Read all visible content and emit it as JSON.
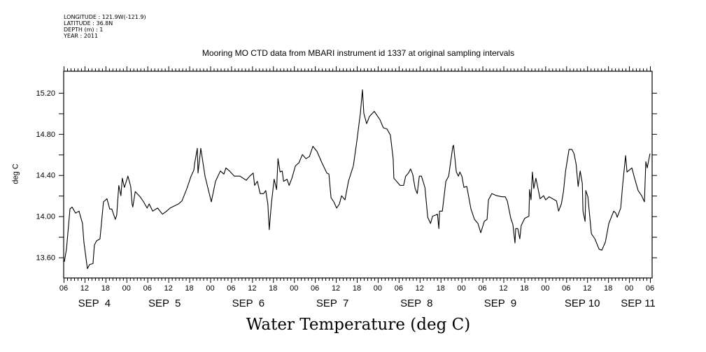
{
  "header": {
    "longitude": "LONGITUDE : 121.9W(-121.9)",
    "latitude": "LATITUDE : 36.8N",
    "depth": "DEPTH (m) : 1",
    "year": "YEAR : 2011"
  },
  "chart_data": {
    "type": "line",
    "title": "Mooring MO CTD data from MBARI instrument id 1337 at original sampling intervals",
    "main_label": "Water Temperature (deg C)",
    "xlabel": "",
    "ylabel": "deg C",
    "x_units": "hours since SEP 4 00:00 (2011)",
    "xlim": [
      6,
      174.6
    ],
    "ylim": [
      13.4,
      15.41
    ],
    "y_ticks": [
      13.6,
      13.8,
      14.0,
      14.2,
      14.4,
      14.6,
      14.8,
      15.0,
      15.2
    ],
    "y_tick_labels": [
      {
        "value": 13.6,
        "label": "13.60"
      },
      {
        "value": 14.0,
        "label": "14.00"
      },
      {
        "value": 14.4,
        "label": "14.40"
      },
      {
        "value": 14.8,
        "label": "14.80"
      },
      {
        "value": 15.2,
        "label": "15.20"
      }
    ],
    "x_hour_labels": [
      "06",
      "12",
      "18",
      "00",
      "06",
      "12",
      "18",
      "00",
      "06",
      "12",
      "18",
      "00",
      "06",
      "12",
      "18",
      "00",
      "06",
      "12",
      "18",
      "00",
      "06",
      "12",
      "18",
      "00",
      "06",
      "12",
      "18",
      "00",
      "06"
    ],
    "x_hour_label_start": 6,
    "x_hour_label_step": 6,
    "date_labels": [
      {
        "label": "SEP  4",
        "hour": 14.8
      },
      {
        "label": "SEP  5",
        "hour": 34.9
      },
      {
        "label": "SEP  6",
        "hour": 58.9
      },
      {
        "label": "SEP  7",
        "hour": 83.0
      },
      {
        "label": "SEP  8",
        "hour": 107.1
      },
      {
        "label": "SEP  9",
        "hour": 131.1
      },
      {
        "label": "SEP 10",
        "hour": 154.6
      },
      {
        "label": "SEP 11",
        "hour": 170.6
      }
    ],
    "grid": false,
    "series": [
      {
        "name": "Water Temperature",
        "points": [
          [
            6.0,
            13.58
          ],
          [
            6.2,
            13.56
          ],
          [
            6.8,
            13.68
          ],
          [
            7.8,
            14.07
          ],
          [
            8.4,
            14.09
          ],
          [
            9.4,
            14.03
          ],
          [
            10.4,
            14.05
          ],
          [
            11.4,
            13.93
          ],
          [
            11.8,
            13.75
          ],
          [
            12.8,
            13.49
          ],
          [
            13.4,
            13.53
          ],
          [
            14.4,
            13.54
          ],
          [
            14.8,
            13.72
          ],
          [
            15.4,
            13.76
          ],
          [
            16.4,
            13.78
          ],
          [
            17.2,
            14.07
          ],
          [
            17.4,
            14.14
          ],
          [
            18.4,
            14.17
          ],
          [
            19.2,
            14.07
          ],
          [
            19.8,
            14.07
          ],
          [
            20.8,
            13.97
          ],
          [
            21.2,
            14.01
          ],
          [
            21.8,
            14.3
          ],
          [
            22.4,
            14.2
          ],
          [
            22.8,
            14.37
          ],
          [
            23.4,
            14.28
          ],
          [
            24.4,
            14.39
          ],
          [
            25.2,
            14.29
          ],
          [
            25.6,
            14.12
          ],
          [
            25.8,
            14.09
          ],
          [
            26.5,
            14.24
          ],
          [
            27.9,
            14.19
          ],
          [
            28.9,
            14.14
          ],
          [
            29.9,
            14.08
          ],
          [
            30.5,
            14.12
          ],
          [
            31.5,
            14.05
          ],
          [
            32.9,
            14.08
          ],
          [
            34.3,
            14.02
          ],
          [
            35.5,
            14.05
          ],
          [
            36.5,
            14.08
          ],
          [
            38.9,
            14.12
          ],
          [
            39.9,
            14.15
          ],
          [
            41.3,
            14.27
          ],
          [
            42.5,
            14.39
          ],
          [
            43.3,
            14.45
          ],
          [
            43.5,
            14.51
          ],
          [
            44.3,
            14.66
          ],
          [
            44.5,
            14.42
          ],
          [
            45.3,
            14.66
          ],
          [
            46.5,
            14.39
          ],
          [
            48.3,
            14.14
          ],
          [
            49.5,
            14.34
          ],
          [
            50.9,
            14.44
          ],
          [
            51.9,
            14.41
          ],
          [
            52.5,
            14.47
          ],
          [
            53.5,
            14.44
          ],
          [
            54.9,
            14.39
          ],
          [
            56.5,
            14.39
          ],
          [
            58.3,
            14.35
          ],
          [
            59.3,
            14.39
          ],
          [
            60.3,
            14.42
          ],
          [
            60.7,
            14.3
          ],
          [
            61.5,
            14.34
          ],
          [
            62.3,
            14.22
          ],
          [
            63.3,
            14.22
          ],
          [
            63.9,
            14.25
          ],
          [
            64.5,
            14.12
          ],
          [
            64.9,
            13.87
          ],
          [
            65.5,
            14.12
          ],
          [
            66.3,
            14.36
          ],
          [
            67.0,
            14.26
          ],
          [
            67.4,
            14.56
          ],
          [
            68.0,
            14.43
          ],
          [
            68.6,
            14.44
          ],
          [
            69.0,
            14.34
          ],
          [
            70.0,
            14.36
          ],
          [
            70.6,
            14.3
          ],
          [
            71.4,
            14.37
          ],
          [
            72.4,
            14.49
          ],
          [
            73.4,
            14.52
          ],
          [
            74.4,
            14.6
          ],
          [
            75.4,
            14.56
          ],
          [
            76.4,
            14.58
          ],
          [
            77.4,
            14.68
          ],
          [
            78.6,
            14.63
          ],
          [
            80.0,
            14.52
          ],
          [
            81.4,
            14.42
          ],
          [
            82.0,
            14.41
          ],
          [
            82.6,
            14.18
          ],
          [
            83.4,
            14.14
          ],
          [
            84.2,
            14.08
          ],
          [
            85.0,
            14.12
          ],
          [
            85.6,
            14.2
          ],
          [
            86.6,
            14.16
          ],
          [
            87.6,
            14.34
          ],
          [
            89.0,
            14.49
          ],
          [
            90.0,
            14.73
          ],
          [
            91.0,
            15.0
          ],
          [
            91.6,
            15.23
          ],
          [
            92.0,
            15.0
          ],
          [
            92.8,
            14.9
          ],
          [
            93.6,
            14.97
          ],
          [
            95.0,
            15.02
          ],
          [
            96.0,
            14.97
          ],
          [
            96.6,
            14.94
          ],
          [
            97.6,
            14.86
          ],
          [
            98.6,
            14.85
          ],
          [
            99.6,
            14.79
          ],
          [
            100.4,
            14.56
          ],
          [
            100.6,
            14.37
          ],
          [
            102.4,
            14.3
          ],
          [
            103.4,
            14.3
          ],
          [
            104.0,
            14.39
          ],
          [
            104.8,
            14.42
          ],
          [
            105.4,
            14.46
          ],
          [
            106.0,
            14.41
          ],
          [
            106.7,
            14.27
          ],
          [
            107.3,
            14.22
          ],
          [
            107.9,
            14.39
          ],
          [
            108.5,
            14.39
          ],
          [
            109.5,
            14.28
          ],
          [
            110.3,
            13.99
          ],
          [
            111.1,
            13.93
          ],
          [
            111.7,
            14.0
          ],
          [
            113.1,
            14.02
          ],
          [
            113.5,
            13.88
          ],
          [
            113.7,
            14.05
          ],
          [
            114.5,
            14.05
          ],
          [
            115.5,
            14.34
          ],
          [
            116.3,
            14.39
          ],
          [
            117.5,
            14.68
          ],
          [
            117.7,
            14.69
          ],
          [
            118.5,
            14.43
          ],
          [
            119.1,
            14.39
          ],
          [
            119.5,
            14.43
          ],
          [
            120.1,
            14.39
          ],
          [
            120.7,
            14.28
          ],
          [
            121.5,
            14.29
          ],
          [
            122.7,
            14.07
          ],
          [
            123.7,
            13.97
          ],
          [
            124.7,
            13.93
          ],
          [
            125.5,
            13.84
          ],
          [
            126.5,
            13.95
          ],
          [
            127.3,
            13.97
          ],
          [
            127.7,
            14.16
          ],
          [
            128.7,
            14.22
          ],
          [
            130.1,
            14.2
          ],
          [
            131.5,
            14.19
          ],
          [
            132.5,
            14.19
          ],
          [
            133.1,
            14.15
          ],
          [
            134.1,
            13.98
          ],
          [
            134.7,
            13.92
          ],
          [
            135.3,
            13.74
          ],
          [
            135.5,
            13.88
          ],
          [
            136.1,
            13.88
          ],
          [
            136.7,
            13.78
          ],
          [
            137.1,
            13.91
          ],
          [
            138.1,
            13.98
          ],
          [
            139.3,
            14.0
          ],
          [
            139.5,
            14.26
          ],
          [
            139.9,
            14.16
          ],
          [
            140.3,
            14.43
          ],
          [
            140.7,
            14.27
          ],
          [
            141.3,
            14.37
          ],
          [
            142.5,
            14.17
          ],
          [
            143.5,
            14.2
          ],
          [
            144.1,
            14.16
          ],
          [
            145.1,
            14.19
          ],
          [
            146.1,
            14.17
          ],
          [
            147.2,
            14.15
          ],
          [
            147.8,
            14.05
          ],
          [
            148.6,
            14.12
          ],
          [
            149.2,
            14.24
          ],
          [
            149.8,
            14.44
          ],
          [
            150.8,
            14.65
          ],
          [
            151.6,
            14.65
          ],
          [
            152.2,
            14.61
          ],
          [
            152.8,
            14.51
          ],
          [
            153.4,
            14.29
          ],
          [
            154.0,
            14.44
          ],
          [
            154.6,
            14.32
          ],
          [
            154.8,
            14.05
          ],
          [
            155.4,
            13.95
          ],
          [
            155.6,
            14.25
          ],
          [
            156.2,
            14.19
          ],
          [
            157.2,
            13.83
          ],
          [
            158.2,
            13.78
          ],
          [
            159.4,
            13.68
          ],
          [
            160.2,
            13.67
          ],
          [
            161.2,
            13.75
          ],
          [
            162.2,
            13.93
          ],
          [
            163.6,
            14.05
          ],
          [
            164.2,
            14.03
          ],
          [
            164.6,
            13.99
          ],
          [
            165.6,
            14.08
          ],
          [
            166.2,
            14.32
          ],
          [
            167.0,
            14.59
          ],
          [
            167.4,
            14.43
          ],
          [
            168.8,
            14.47
          ],
          [
            169.4,
            14.39
          ],
          [
            170.6,
            14.25
          ],
          [
            171.6,
            14.2
          ],
          [
            172.4,
            14.14
          ],
          [
            172.8,
            14.53
          ],
          [
            173.2,
            14.47
          ],
          [
            174.0,
            14.61
          ]
        ]
      }
    ]
  }
}
